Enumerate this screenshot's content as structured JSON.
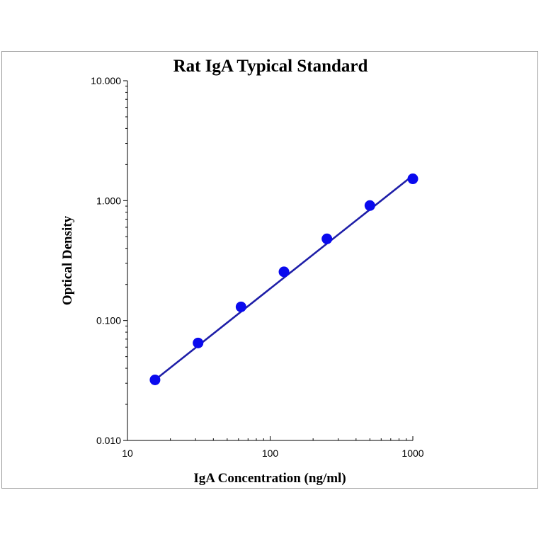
{
  "chart_data": {
    "type": "scatter",
    "title": "Rat IgA Typical Standard",
    "xlabel": "IgA Concentration (ng/ml)",
    "ylabel": "Optical Density",
    "x_scale": "log",
    "y_scale": "log",
    "xlim": [
      10,
      1000
    ],
    "ylim": [
      0.01,
      10
    ],
    "x_ticks": [
      {
        "value": 10,
        "label": "10"
      },
      {
        "value": 100,
        "label": "100"
      },
      {
        "value": 1000,
        "label": "1000"
      }
    ],
    "y_ticks": [
      {
        "value": 0.01,
        "label": "0.010"
      },
      {
        "value": 0.1,
        "label": "0.100"
      },
      {
        "value": 1,
        "label": "1.000"
      },
      {
        "value": 10,
        "label": "10.000"
      }
    ],
    "grid": false,
    "series": [
      {
        "x": [
          15.6,
          31.25,
          62.5,
          125,
          250,
          500,
          1000
        ],
        "y": [
          0.032,
          0.065,
          0.13,
          0.255,
          0.48,
          0.91,
          1.52
        ],
        "color": "#0a0aee",
        "marker": "circle"
      }
    ],
    "fit_line": {
      "x": [
        15.6,
        1000
      ],
      "y": [
        0.032,
        1.62
      ],
      "color": "#1e1ea8"
    }
  }
}
